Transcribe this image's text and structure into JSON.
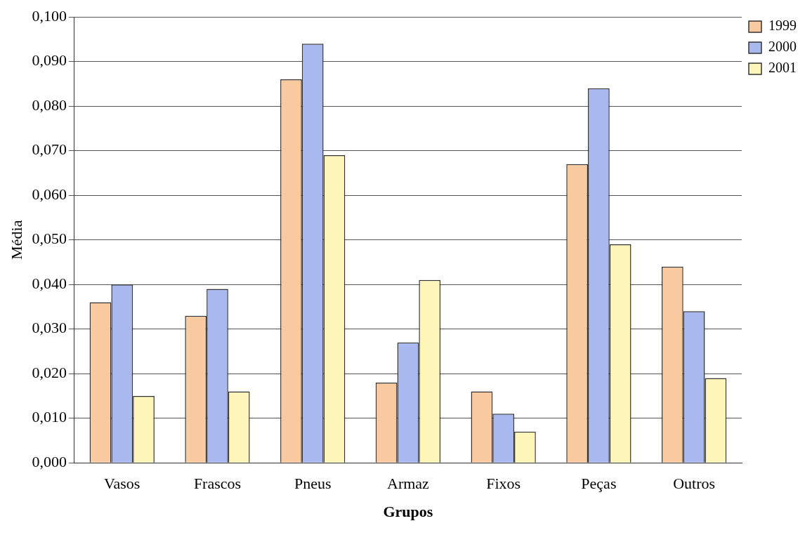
{
  "chart_data": {
    "type": "bar",
    "xlabel": "Grupos",
    "ylabel": "Média",
    "categories": [
      "Vasos",
      "Frascos",
      "Pneus",
      "Armaz",
      "Fixos",
      "Peças",
      "Outros"
    ],
    "series": [
      {
        "name": "1999",
        "color": "#f9c9a0",
        "values": [
          0.036,
          0.033,
          0.086,
          0.018,
          0.016,
          0.067,
          0.044
        ]
      },
      {
        "name": "2000",
        "color": "#a9b8ef",
        "values": [
          0.04,
          0.039,
          0.094,
          0.027,
          0.011,
          0.084,
          0.034
        ]
      },
      {
        "name": "2001",
        "color": "#fdf6b8",
        "values": [
          0.015,
          0.016,
          0.069,
          0.041,
          0.007,
          0.049,
          0.019
        ]
      }
    ],
    "ylim": [
      0,
      0.1
    ],
    "yticks": [
      {
        "value": 0,
        "label": "0,000"
      },
      {
        "value": 0.01,
        "label": "0,010"
      },
      {
        "value": 0.02,
        "label": "0,020"
      },
      {
        "value": 0.03,
        "label": "0,030"
      },
      {
        "value": 0.04,
        "label": "0,040"
      },
      {
        "value": 0.05,
        "label": "0,050"
      },
      {
        "value": 0.06,
        "label": "0,060"
      },
      {
        "value": 0.07,
        "label": "0,070"
      },
      {
        "value": 0.08,
        "label": "0,080"
      },
      {
        "value": 0.09,
        "label": "0,090"
      },
      {
        "value": 0.1,
        "label": "0,100"
      }
    ],
    "grid": "y",
    "legend": "top right"
  }
}
